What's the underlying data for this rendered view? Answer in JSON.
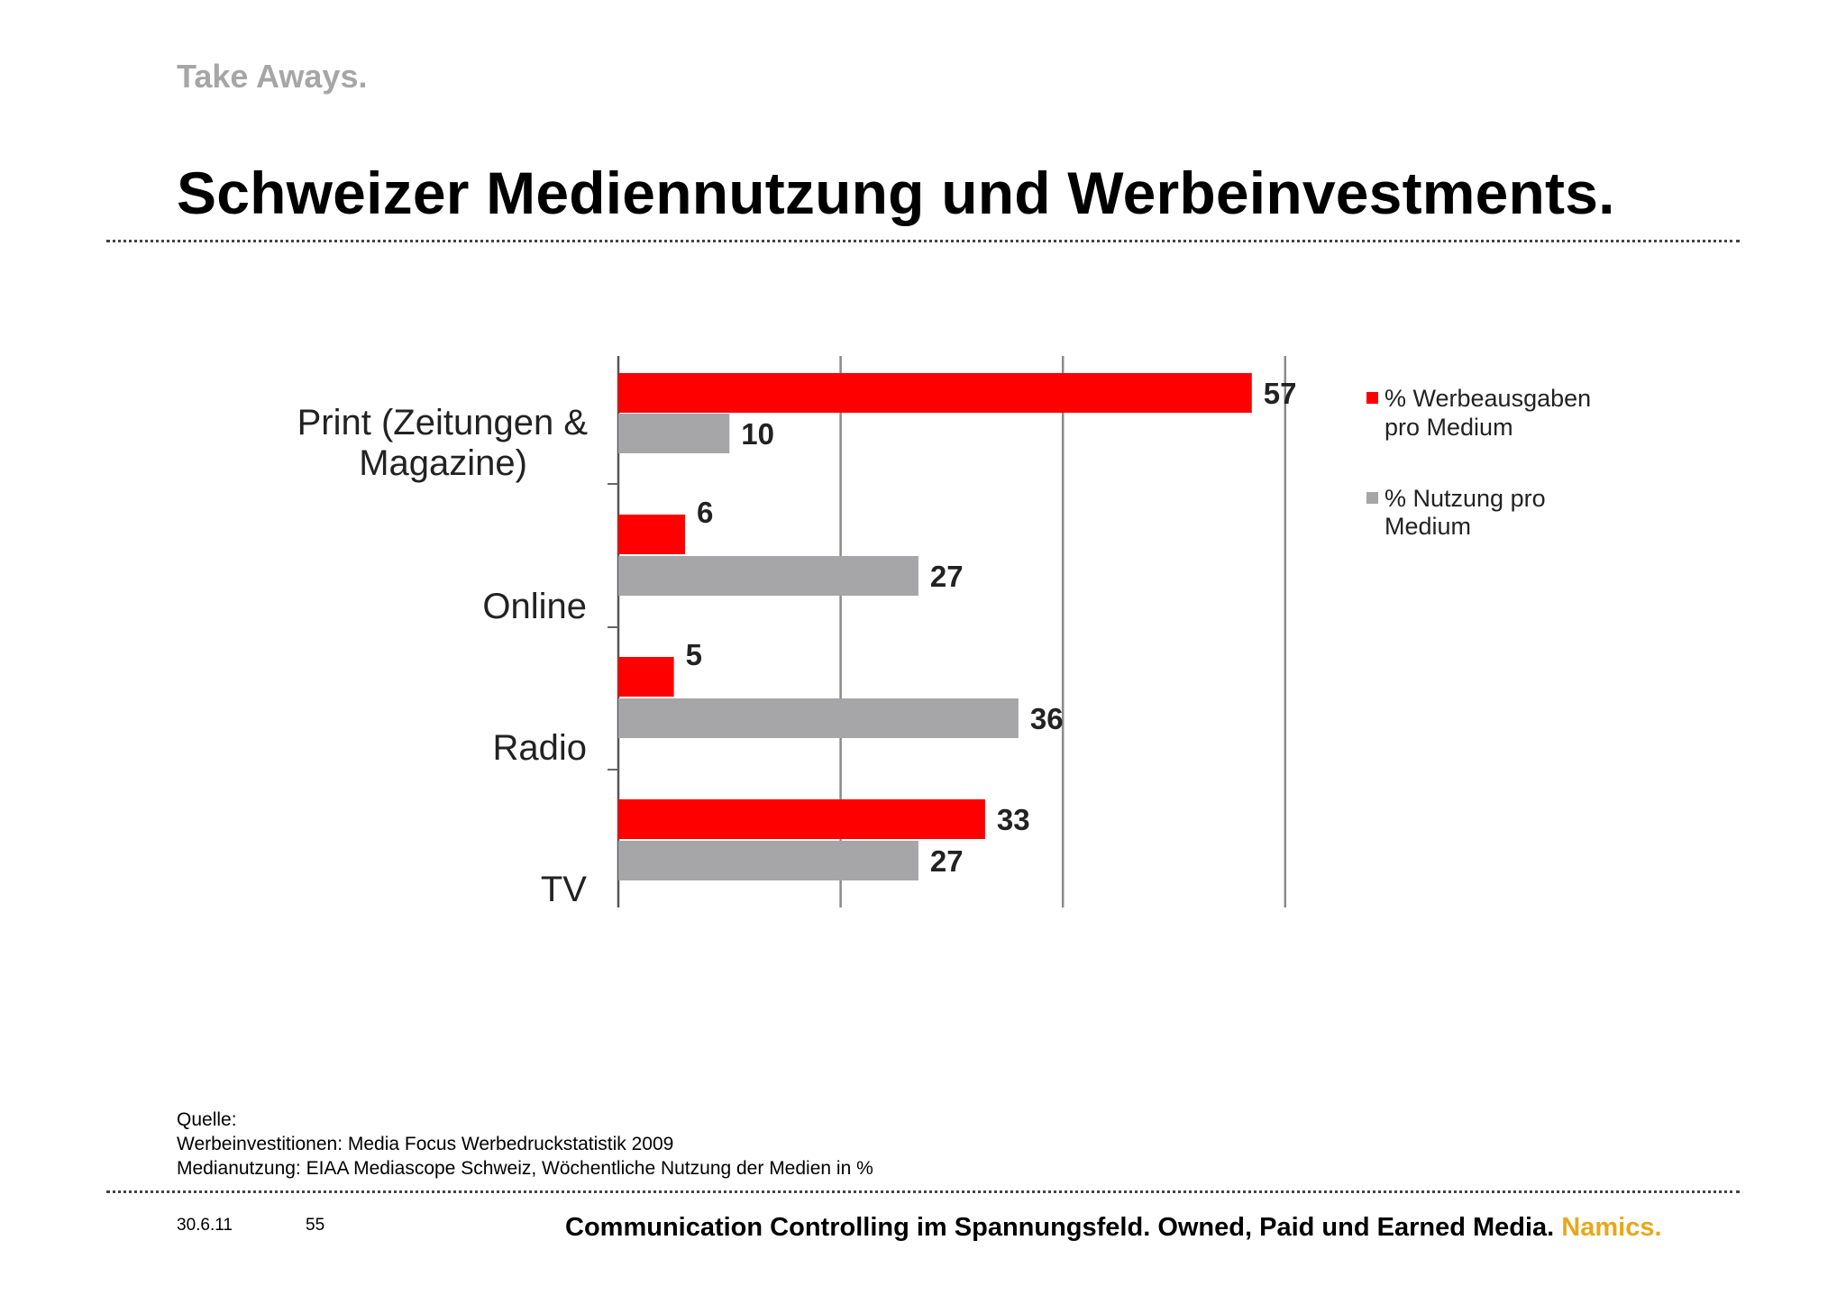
{
  "header": {
    "kicker": "Take Aways.",
    "title": "Schweizer Mediennutzung und Werbeinvestments."
  },
  "colors": {
    "series_red": "#ff0000",
    "series_gray": "#a6a5a7",
    "brand": "#e8a81a"
  },
  "chart_data": {
    "type": "bar",
    "orientation": "horizontal",
    "categories": [
      "Print (Zeitungen & Magazine)",
      "Online",
      "Radio",
      "TV"
    ],
    "series": [
      {
        "name": "% Werbeausgaben pro Medium",
        "values": [
          57,
          6,
          5,
          33
        ]
      },
      {
        "name": "% Nutzung pro Medium",
        "values": [
          10,
          27,
          36,
          27
        ]
      }
    ],
    "xlim": [
      0,
      60
    ],
    "grid": true,
    "legend_position": "right"
  },
  "legend": {
    "item1_line1": "% Werbeausgaben",
    "item1_line2": "pro Medium",
    "item2_line1": "% Nutzung pro",
    "item2_line2": "Medium"
  },
  "source": {
    "heading": "Quelle:",
    "line1": "Werbeinvestitionen: Media Focus Werbedruckstatistik 2009",
    "line2": "Medianutzung: EIAA Mediascope Schweiz, Wöchentliche Nutzung der Medien in %"
  },
  "footer": {
    "date": "30.6.11",
    "page": "55",
    "text": "Communication Controlling im Spannungsfeld. Owned, Paid und Earned Media.",
    "brand": "Namics."
  }
}
